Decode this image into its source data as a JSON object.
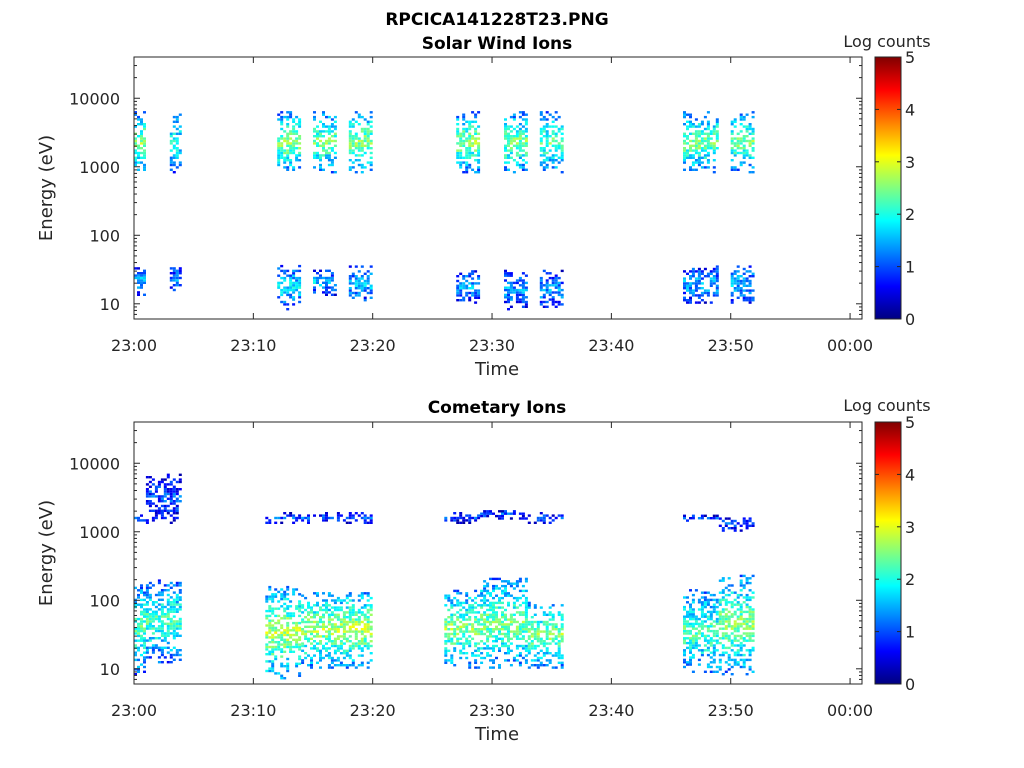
{
  "figure": {
    "title": "RPCICA141228T23.PNG"
  },
  "colormap": {
    "name": "jet",
    "stops": [
      "#000080",
      "#0000ff",
      "#0080ff",
      "#00ffff",
      "#80ff80",
      "#ffff00",
      "#ff8000",
      "#ff0000",
      "#800000"
    ]
  },
  "chart_data": [
    {
      "type": "heatmap",
      "title": "Solar Wind Ions",
      "xlabel": "Time",
      "ylabel": "Energy (eV)",
      "yscale": "log",
      "ylim": [
        6,
        40000
      ],
      "xlim": [
        "23:00",
        "00:01"
      ],
      "x_ticks": [
        "23:00",
        "23:10",
        "23:20",
        "23:30",
        "23:40",
        "23:50",
        "00:00"
      ],
      "y_ticks": [
        "10",
        "100",
        "1000",
        "10000"
      ],
      "colorbar": {
        "label": "Log counts",
        "range": [
          0,
          5
        ],
        "ticks": [
          "0",
          "1",
          "2",
          "3",
          "4",
          "5"
        ]
      },
      "bursts": [
        {
          "start": "23:00",
          "end": "23:01",
          "upper_energy": [
            800,
            6000
          ],
          "upper_log_counts": 2.6,
          "lower_energy": [
            13,
            35
          ],
          "lower_log_counts": 1.5
        },
        {
          "start": "23:03",
          "end": "23:04",
          "upper_energy": [
            800,
            6000
          ],
          "upper_log_counts": 2.0,
          "lower_energy": [
            13,
            35
          ],
          "lower_log_counts": 1.3
        },
        {
          "start": "23:12",
          "end": "23:14",
          "upper_energy": [
            800,
            6000
          ],
          "upper_log_counts": 2.6,
          "lower_energy": [
            8,
            35
          ],
          "lower_log_counts": 1.8
        },
        {
          "start": "23:15",
          "end": "23:17",
          "upper_energy": [
            800,
            6000
          ],
          "upper_log_counts": 2.5,
          "lower_energy": [
            13,
            30
          ],
          "lower_log_counts": 1.6
        },
        {
          "start": "23:18",
          "end": "23:20",
          "upper_energy": [
            800,
            6000
          ],
          "upper_log_counts": 2.6,
          "lower_energy": [
            10,
            35
          ],
          "lower_log_counts": 1.6
        },
        {
          "start": "23:27",
          "end": "23:29",
          "upper_energy": [
            800,
            6000
          ],
          "upper_log_counts": 2.6,
          "lower_energy": [
            10,
            30
          ],
          "lower_log_counts": 1.5
        },
        {
          "start": "23:31",
          "end": "23:33",
          "upper_energy": [
            800,
            6000
          ],
          "upper_log_counts": 2.5,
          "lower_energy": [
            8,
            30
          ],
          "lower_log_counts": 1.4
        },
        {
          "start": "23:34",
          "end": "23:36",
          "upper_energy": [
            800,
            6000
          ],
          "upper_log_counts": 2.4,
          "lower_energy": [
            8,
            30
          ],
          "lower_log_counts": 1.4
        },
        {
          "start": "23:46",
          "end": "23:49",
          "upper_energy": [
            800,
            6000
          ],
          "upper_log_counts": 2.5,
          "lower_energy": [
            10,
            35
          ],
          "lower_log_counts": 1.5
        },
        {
          "start": "23:50",
          "end": "23:52",
          "upper_energy": [
            800,
            6000
          ],
          "upper_log_counts": 2.5,
          "lower_energy": [
            10,
            35
          ],
          "lower_log_counts": 1.6
        }
      ]
    },
    {
      "type": "heatmap",
      "title": "Cometary Ions",
      "xlabel": "Time",
      "ylabel": "Energy (eV)",
      "yscale": "log",
      "ylim": [
        6,
        40000
      ],
      "xlim": [
        "23:00",
        "00:01"
      ],
      "x_ticks": [
        "23:00",
        "23:10",
        "23:20",
        "23:30",
        "23:40",
        "23:50",
        "00:00"
      ],
      "y_ticks": [
        "10",
        "100",
        "1000",
        "10000"
      ],
      "colorbar": {
        "label": "Log counts",
        "range": [
          0,
          5
        ],
        "ticks": [
          "0",
          "1",
          "2",
          "3",
          "4",
          "5"
        ]
      },
      "bursts": [
        {
          "start": "23:00",
          "end": "23:01",
          "upper_energy": [
            1300,
            1700
          ],
          "upper_log_counts": 1.0,
          "lower_energy": [
            8,
            180
          ],
          "lower_log_counts": 2.3
        },
        {
          "start": "23:01",
          "end": "23:04",
          "upper_energy": [
            1300,
            7000
          ],
          "upper_log_counts": 1.0,
          "lower_energy": [
            12,
            200
          ],
          "lower_log_counts": 2.2
        },
        {
          "start": "23:11",
          "end": "23:14",
          "upper_energy": [
            1300,
            1800
          ],
          "upper_log_counts": 1.0,
          "lower_energy": [
            7,
            150
          ],
          "lower_log_counts": 2.8
        },
        {
          "start": "23:14",
          "end": "23:17",
          "upper_energy": [
            1300,
            1800
          ],
          "upper_log_counts": 1.1,
          "lower_energy": [
            10,
            130
          ],
          "lower_log_counts": 2.7
        },
        {
          "start": "23:17",
          "end": "23:20",
          "upper_energy": [
            1300,
            1800
          ],
          "upper_log_counts": 1.0,
          "lower_energy": [
            10,
            130
          ],
          "lower_log_counts": 2.8
        },
        {
          "start": "23:26",
          "end": "23:29",
          "upper_energy": [
            1300,
            1800
          ],
          "upper_log_counts": 0.9,
          "lower_energy": [
            10,
            140
          ],
          "lower_log_counts": 2.6
        },
        {
          "start": "23:29",
          "end": "23:33",
          "upper_energy": [
            1500,
            2000
          ],
          "upper_log_counts": 1.0,
          "lower_energy": [
            10,
            210
          ],
          "lower_log_counts": 2.5
        },
        {
          "start": "23:33",
          "end": "23:36",
          "upper_energy": [
            1300,
            1800
          ],
          "upper_log_counts": 1.0,
          "lower_energy": [
            10,
            90
          ],
          "lower_log_counts": 2.6
        },
        {
          "start": "23:46",
          "end": "23:49",
          "upper_energy": [
            1400,
            1700
          ],
          "upper_log_counts": 1.0,
          "lower_energy": [
            8,
            140
          ],
          "lower_log_counts": 2.3
        },
        {
          "start": "23:49",
          "end": "23:52",
          "upper_energy": [
            1000,
            1600
          ],
          "upper_log_counts": 1.0,
          "lower_energy": [
            8,
            230
          ],
          "lower_log_counts": 2.6
        }
      ]
    }
  ]
}
